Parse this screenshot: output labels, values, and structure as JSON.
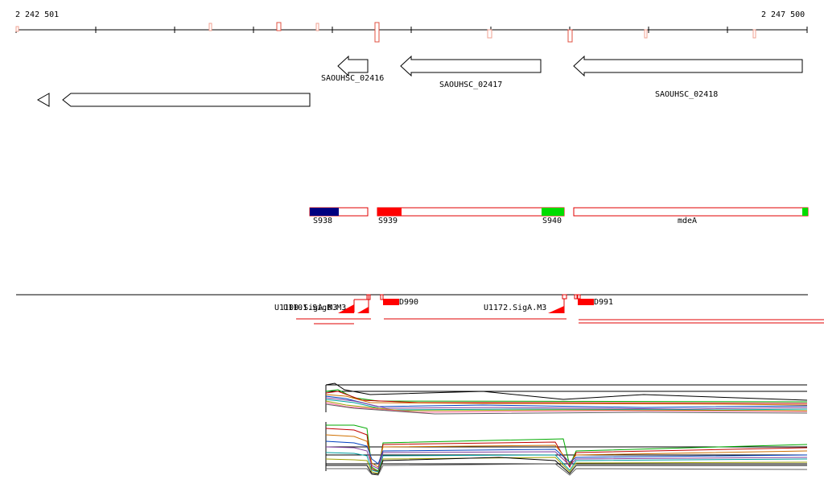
{
  "axis": {
    "start_label": "2 242 501",
    "end_label": "2 247 500"
  },
  "genes": {
    "g2416": "SAOUHSC_02416",
    "g2417": "SAOUHSC_02417",
    "g2418": "SAOUHSC_02418"
  },
  "segments": {
    "s938": "S938",
    "s939": "S939",
    "s940": "S940",
    "mdeA": "mdeA"
  },
  "features": {
    "u1100": "U1100.SigA.M3",
    "u1101": "U1101.SigB.M3",
    "d990": "D990",
    "u1172": "U1172.SigA.M3",
    "d991": "D991"
  },
  "colors": {
    "segment_outline": "#e00000",
    "blue_block": "#000080",
    "red_block": "#ff0000",
    "green_block": "#00dd00",
    "marker_outline": "#f0a090"
  }
}
